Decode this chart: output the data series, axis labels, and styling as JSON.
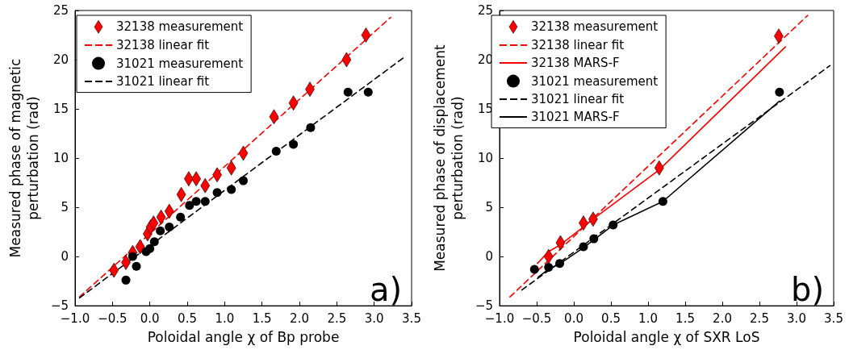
{
  "chart_data": [
    {
      "type": "scatter",
      "xlabel": "Poloidal angle χ of Bp probe",
      "ylabel": "Measured phase of magnetic\nperturbation (rad)",
      "xlim": [
        -1.0,
        3.5
      ],
      "ylim": [
        -5,
        25
      ],
      "xticks": [
        {
          "value": -1.0,
          "label": "−1.0"
        },
        {
          "value": -0.5,
          "label": "−0.5"
        },
        {
          "value": 0,
          "label": "0.0"
        },
        {
          "value": 0.5,
          "label": "0.5"
        },
        {
          "value": 1,
          "label": "1.0"
        },
        {
          "value": 1.5,
          "label": "1.5"
        },
        {
          "value": 2,
          "label": "2.0"
        },
        {
          "value": 2.5,
          "label": "2.5"
        },
        {
          "value": 3,
          "label": "3.0"
        },
        {
          "value": 3.5,
          "label": "3.5"
        }
      ],
      "yticks": [
        {
          "value": -5,
          "label": "−5"
        },
        0,
        5,
        10,
        15,
        20,
        25
      ],
      "grid": false,
      "legend": "top left",
      "annotations": [
        "a)"
      ],
      "series": [
        {
          "name": "32138 measurement",
          "type": "scatter",
          "marker": "diamond",
          "color": "#ff0000",
          "x": [
            -0.48,
            -0.32,
            -0.23,
            -0.13,
            -0.03,
            0.01,
            0.05,
            0.15,
            0.26,
            0.42,
            0.52,
            0.62,
            0.74,
            0.9,
            1.09,
            1.25,
            1.66,
            1.92,
            2.14,
            2.63,
            2.89
          ],
          "values": [
            -1.4,
            -0.6,
            0.4,
            1.0,
            2.3,
            3.0,
            3.4,
            4.0,
            4.6,
            6.3,
            7.9,
            7.9,
            7.2,
            8.3,
            9.0,
            10.5,
            14.2,
            15.6,
            17.0,
            20.0,
            22.5
          ]
        },
        {
          "name": "32138 linear fit",
          "type": "line",
          "marker": "none",
          "line_style": "dashed",
          "color": "#ff0000",
          "x": [
            -0.94,
            3.22
          ],
          "values": [
            -4.1,
            24.3
          ]
        },
        {
          "name": "31021 measurement",
          "type": "scatter",
          "marker": "circle",
          "color": "#000000",
          "x": [
            -0.32,
            -0.18,
            -0.23,
            -0.05,
            0.0,
            0.06,
            0.14,
            0.26,
            0.41,
            0.53,
            0.62,
            0.74,
            0.9,
            1.09,
            1.25,
            1.69,
            1.92,
            2.15,
            2.65,
            2.92
          ],
          "values": [
            -2.4,
            -1.0,
            0.0,
            0.5,
            0.8,
            1.5,
            2.6,
            3.0,
            4.0,
            5.2,
            5.6,
            5.6,
            6.5,
            6.8,
            7.7,
            10.7,
            11.4,
            13.1,
            16.7,
            16.7
          ]
        },
        {
          "name": "31021 linear fit",
          "type": "line",
          "marker": "none",
          "line_style": "dashed",
          "color": "#000000",
          "x": [
            -0.94,
            3.41
          ],
          "values": [
            -4.2,
            20.3
          ]
        }
      ]
    },
    {
      "type": "scatter",
      "xlabel": "Poloidal angle χ of SXR LoS",
      "ylabel": "Measured phase of displacement\nperturbation (rad)",
      "xlim": [
        -1.0,
        3.5
      ],
      "ylim": [
        -5,
        25
      ],
      "xticks": [
        {
          "value": -1.0,
          "label": "−1.0"
        },
        {
          "value": -0.5,
          "label": "−0.5"
        },
        {
          "value": 0,
          "label": "0.0"
        },
        {
          "value": 0.5,
          "label": "0.5"
        },
        {
          "value": 1,
          "label": "1.0"
        },
        {
          "value": 1.5,
          "label": "1.5"
        },
        {
          "value": 2,
          "label": "2.0"
        },
        {
          "value": 2.5,
          "label": "2.5"
        },
        {
          "value": 3,
          "label": "3.0"
        },
        {
          "value": 3.5,
          "label": "3.5"
        }
      ],
      "yticks": [
        {
          "value": -5,
          "label": "−5"
        },
        0,
        5,
        10,
        15,
        20,
        25
      ],
      "grid": false,
      "legend": "top left",
      "annotations": [
        "b)"
      ],
      "series": [
        {
          "name": "32138 measurement",
          "type": "scatter",
          "marker": "diamond",
          "color": "#ff0000",
          "x": [
            -0.34,
            -0.18,
            0.13,
            0.26,
            1.15,
            2.76
          ],
          "values": [
            0.0,
            1.4,
            3.4,
            3.8,
            9.0,
            22.4
          ]
        },
        {
          "name": "32138 linear fit",
          "type": "line",
          "marker": "none",
          "line_style": "dashed",
          "color": "#ff0000",
          "x": [
            -0.86,
            3.15
          ],
          "values": [
            -4.1,
            24.5
          ]
        },
        {
          "name": "32138 MARS-F",
          "type": "line",
          "marker": "none",
          "line_style": "solid",
          "color": "#ff0000",
          "x": [
            -0.49,
            -0.34,
            -0.18,
            0.13,
            0.26,
            1.15,
            2.85
          ],
          "values": [
            -0.7,
            0.5,
            1.2,
            3.0,
            3.8,
            8.8,
            21.3
          ]
        },
        {
          "name": "31021 measurement",
          "type": "scatter",
          "marker": "circle",
          "color": "#000000",
          "x": [
            -0.53,
            -0.34,
            -0.19,
            0.13,
            0.27,
            0.53,
            1.2,
            2.77
          ],
          "values": [
            -1.3,
            -1.1,
            -0.7,
            1.0,
            1.8,
            3.2,
            5.6,
            16.7
          ]
        },
        {
          "name": "31021 linear fit",
          "type": "line",
          "marker": "none",
          "line_style": "dashed",
          "color": "#000000",
          "x": [
            -0.7,
            3.45
          ],
          "values": [
            -3.4,
            19.4
          ]
        },
        {
          "name": "31021 MARS-F",
          "type": "line",
          "marker": "none",
          "line_style": "solid",
          "color": "#000000",
          "x": [
            -0.48,
            -0.34,
            -0.18,
            0.13,
            0.27,
            0.53,
            1.2,
            2.77
          ],
          "values": [
            -2.1,
            -1.3,
            -0.7,
            0.9,
            1.7,
            3.2,
            5.6,
            15.8
          ]
        }
      ]
    }
  ]
}
